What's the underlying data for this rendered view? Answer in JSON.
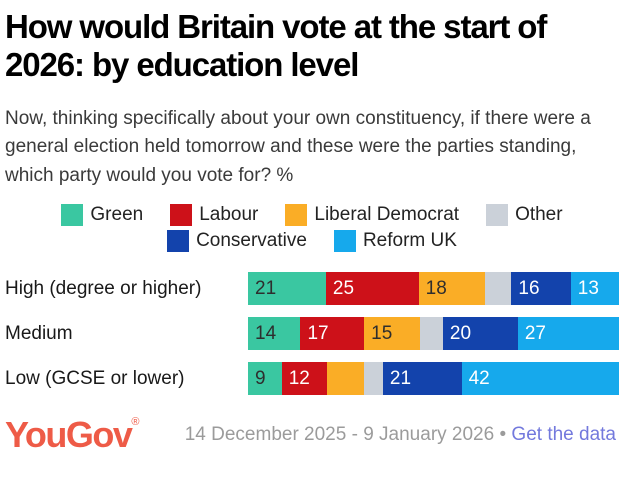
{
  "title": "How would Britain vote at the start of 2026: by education level",
  "subtitle": "Now, thinking specifically about your own constituency, if there were a general election held tomorrow and these were the parties standing, which party would you vote for? %",
  "legend": {
    "row1": [
      {
        "label": "Green",
        "color": "#3AC7A1"
      },
      {
        "label": "Labour",
        "color": "#CD1119"
      },
      {
        "label": "Liberal Democrat",
        "color": "#FAAD26"
      },
      {
        "label": "Other",
        "color": "#CBD1D9"
      }
    ],
    "row2": [
      {
        "label": "Conservative",
        "color": "#1343AC"
      },
      {
        "label": "Reform UK",
        "color": "#16A9EC"
      }
    ]
  },
  "chart_data": {
    "type": "bar",
    "stacked": true,
    "orientation": "horizontal",
    "title": "How would Britain vote at the start of 2026: by education level",
    "categories": [
      "High (degree or higher)",
      "Medium",
      "Low (GCSE or lower)"
    ],
    "series": [
      {
        "name": "Green",
        "color": "#3AC7A1",
        "label_color": "#2E2E2E",
        "values": [
          21,
          14,
          9
        ],
        "shown_labels": [
          "21",
          "14",
          "9"
        ]
      },
      {
        "name": "Labour",
        "color": "#CD1119",
        "label_color": "#FFFFFF",
        "values": [
          25,
          17,
          12
        ],
        "shown_labels": [
          "25",
          "17",
          "12"
        ]
      },
      {
        "name": "Liberal Democrat",
        "color": "#FAAD26",
        "label_color": "#2E2E2E",
        "values": [
          18,
          15,
          10
        ],
        "shown_labels": [
          "18",
          "15",
          ""
        ]
      },
      {
        "name": "Other",
        "color": "#CBD1D9",
        "label_color": "#2E2E2E",
        "values": [
          7,
          6,
          5
        ],
        "shown_labels": [
          "",
          "",
          ""
        ]
      },
      {
        "name": "Conservative",
        "color": "#1343AC",
        "label_color": "#FFFFFF",
        "values": [
          16,
          20,
          21
        ],
        "shown_labels": [
          "16",
          "20",
          "21"
        ]
      },
      {
        "name": "Reform UK",
        "color": "#16A9EC",
        "label_color": "#FFFFFF",
        "values": [
          13,
          27,
          42
        ],
        "shown_labels": [
          "13",
          "27",
          "42"
        ]
      }
    ],
    "xlim": [
      0,
      100
    ],
    "legend_position": "top-center",
    "grid": false
  },
  "footer": {
    "logo_text": "YouGov",
    "registered_mark": "®",
    "logo_color": "#EE5B47",
    "date_range": "14 December 2025 - 9 January 2026",
    "separator": "•",
    "date_color": "#9B9B9B",
    "link_label": "Get the data",
    "link_color": "#7379DD"
  }
}
